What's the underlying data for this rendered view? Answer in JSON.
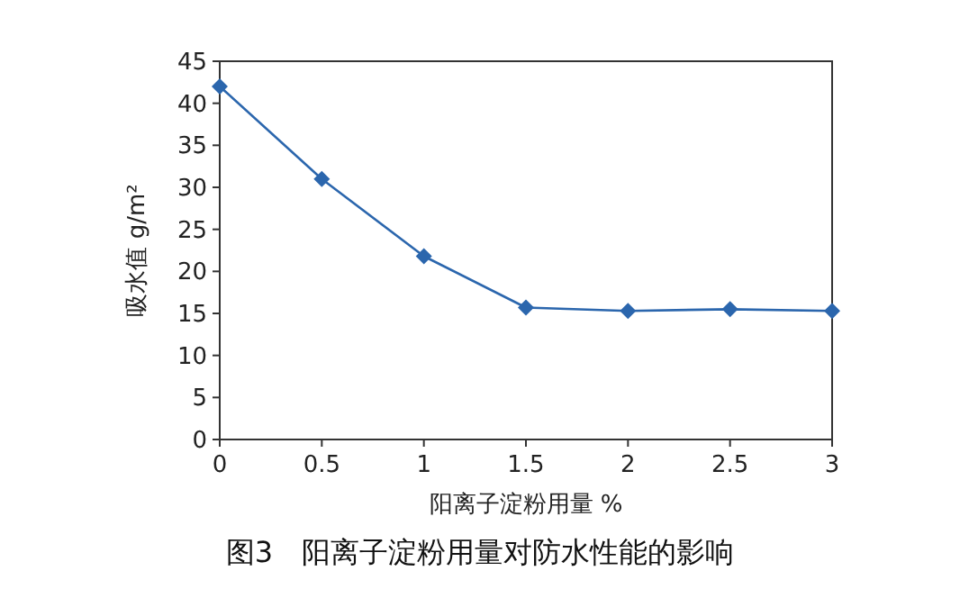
{
  "chart_data": {
    "type": "line",
    "title": "图3　阳离子淀粉用量对防水性能的影响",
    "xlabel": "阳离子淀粉用量 %",
    "ylabel": "吸水值 g/m²",
    "x": [
      0,
      0.5,
      1,
      1.5,
      2,
      2.5,
      3
    ],
    "series": [
      {
        "color": "#2b66ad",
        "values": [
          42,
          31,
          21.8,
          15.7,
          15.3,
          15.5,
          15.3
        ]
      }
    ],
    "xlim": [
      0,
      3
    ],
    "xticks": [
      0,
      0.5,
      1,
      1.5,
      2,
      2.5,
      3
    ],
    "ylim": [
      0,
      45
    ],
    "yticks": [
      0,
      5,
      10,
      15,
      20,
      25,
      30,
      35,
      40,
      45
    ],
    "marker": "diamond",
    "line_style": "solid",
    "grid": false
  }
}
